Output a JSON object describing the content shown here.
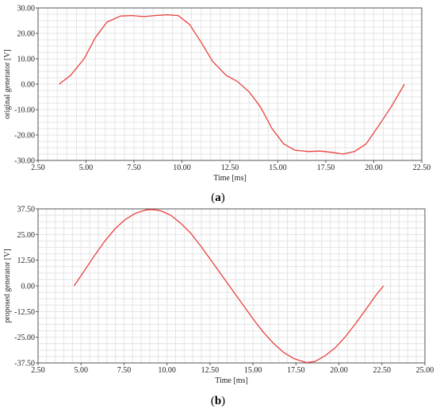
{
  "chart_data": [
    {
      "type": "line",
      "caption": "a",
      "xlabel": "Time [ms]",
      "ylabel": "original generator [V]",
      "xlim": [
        2.5,
        22.5
      ],
      "ylim": [
        -30,
        30
      ],
      "xticks": [
        "2.50",
        "5.00",
        "7.50",
        "10.00",
        "12.50",
        "15.00",
        "17.50",
        "20.00",
        "22.50"
      ],
      "yticks": [
        "30.00",
        "20.00",
        "10.00",
        "0.00",
        "-10.00",
        "-20.00",
        "-30.00"
      ],
      "grid": true,
      "line_color": "#e8413f",
      "series": [
        {
          "x": [
            3.6,
            4.2,
            4.9,
            5.5,
            6.1,
            6.8,
            7.4,
            8.0,
            8.6,
            9.2,
            9.8,
            10.4,
            11.0,
            11.6,
            12.3,
            12.9,
            13.5,
            14.1,
            14.7,
            15.3,
            15.9,
            16.6,
            17.2,
            17.8,
            18.4,
            19.0,
            19.6,
            20.2,
            20.9,
            21.6
          ],
          "y": [
            0.0,
            3.5,
            10.0,
            18.5,
            24.5,
            26.8,
            27.0,
            26.6,
            27.0,
            27.3,
            27.0,
            23.5,
            16.5,
            9.0,
            3.5,
            1.0,
            -3.0,
            -9.0,
            -17.5,
            -23.5,
            -26.0,
            -26.5,
            -26.3,
            -26.8,
            -27.5,
            -26.5,
            -23.5,
            -17.0,
            -9.0,
            0.0
          ]
        }
      ]
    },
    {
      "type": "line",
      "caption": "b",
      "xlabel": "Time [ms]",
      "ylabel": "proposed generator [V]",
      "xlim": [
        2.5,
        25.0
      ],
      "ylim": [
        -37.5,
        37.5
      ],
      "xticks": [
        "2.50",
        "5.00",
        "7.50",
        "10.00",
        "12.50",
        "15.00",
        "17.50",
        "20.00",
        "22.50",
        "25.00"
      ],
      "yticks": [
        "37.50",
        "25.00",
        "12.50",
        "0.00",
        "-12.50",
        "-25.00",
        "-37.50"
      ],
      "grid": true,
      "line_color": "#e8413f",
      "series": [
        {
          "x": [
            4.6,
            5.2,
            5.8,
            6.4,
            7.0,
            7.6,
            8.2,
            8.8,
            9.1,
            9.6,
            10.2,
            10.8,
            11.4,
            12.0,
            12.6,
            13.2,
            13.8,
            14.4,
            15.0,
            15.6,
            16.2,
            16.8,
            17.4,
            18.1,
            18.6,
            19.2,
            19.8,
            20.4,
            21.0,
            21.6,
            22.2,
            22.6
          ],
          "y": [
            0.0,
            7.5,
            15.0,
            22.0,
            28.0,
            32.5,
            35.5,
            37.0,
            37.2,
            36.7,
            34.5,
            30.5,
            25.5,
            19.0,
            12.0,
            5.0,
            -2.0,
            -9.0,
            -16.0,
            -22.5,
            -28.0,
            -32.5,
            -35.5,
            -37.3,
            -36.8,
            -34.0,
            -30.0,
            -24.5,
            -18.0,
            -11.0,
            -4.0,
            0.0
          ]
        }
      ]
    }
  ]
}
